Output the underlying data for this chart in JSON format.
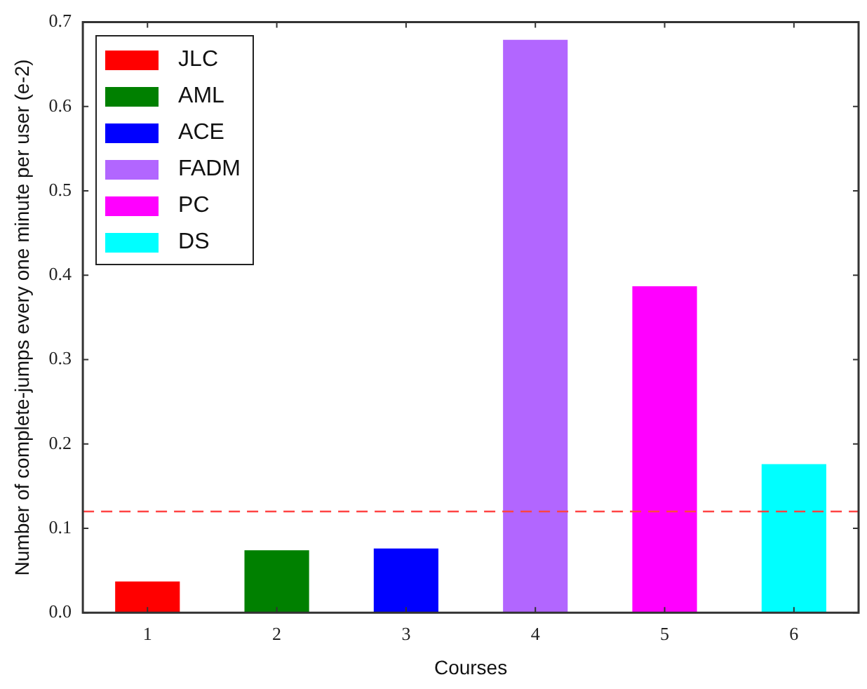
{
  "chart_data": {
    "type": "bar",
    "xlabel": "Courses",
    "ylabel": "Number of complete-jumps every one minute per user (e-2)",
    "categories": [
      "1",
      "2",
      "3",
      "4",
      "5",
      "6"
    ],
    "series": [
      {
        "name": "JLC",
        "color": "#ff0000",
        "values": [
          0.037,
          null,
          null,
          null,
          null,
          null
        ]
      },
      {
        "name": "AML",
        "color": "#008000",
        "values": [
          null,
          0.074,
          null,
          null,
          null,
          null
        ]
      },
      {
        "name": "ACE",
        "color": "#0000ff",
        "values": [
          null,
          null,
          0.076,
          null,
          null,
          null
        ]
      },
      {
        "name": "FADM",
        "color": "#b266ff",
        "values": [
          null,
          null,
          null,
          0.679,
          null,
          null
        ]
      },
      {
        "name": "PC",
        "color": "#ff00ff",
        "values": [
          null,
          null,
          null,
          null,
          0.387,
          null
        ]
      },
      {
        "name": "DS",
        "color": "#00ffff",
        "values": [
          null,
          null,
          null,
          null,
          null,
          0.176
        ]
      }
    ],
    "ylim": [
      0,
      0.7
    ],
    "yticks": [
      {
        "value": 0,
        "label": "0.0"
      },
      0.1,
      0.2,
      0.3,
      0.4,
      0.5,
      0.6,
      0.7
    ],
    "ref_lines": [
      {
        "axis": "y",
        "value": 0.12,
        "color": "#ff4444",
        "line_style": "dashed"
      }
    ],
    "grid": false,
    "legend": "top left"
  }
}
